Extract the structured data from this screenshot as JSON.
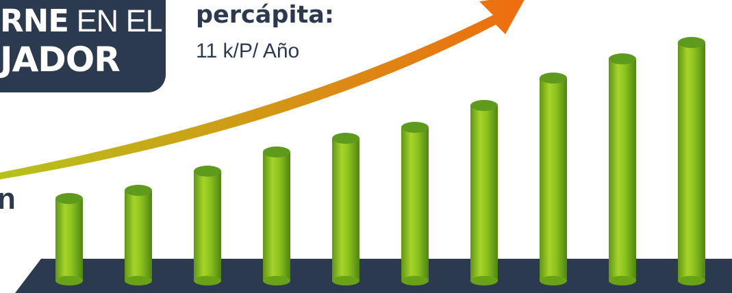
{
  "title": {
    "line1_bold": "RNE",
    "line1_light": " EN EL",
    "line2": "JADOR"
  },
  "subtitle": "percápita:",
  "unit_label": "11 k/P/ Año",
  "side_fragment": "n",
  "colors": {
    "badge": "#2b3a4f",
    "bar": "#8dc21f",
    "bar_top": "#5e9a1c",
    "base": "#2b3a4f",
    "arrow_start": "#b6c21b",
    "arrow_end": "#ef6c0f"
  },
  "chart_data": {
    "type": "bar",
    "categories": [
      "",
      "",
      "",
      "",
      "",
      "",
      "",
      "",
      "",
      ""
    ],
    "series": [
      {
        "values": [
          30,
          33,
          40,
          47,
          52,
          56,
          64,
          74,
          81,
          87
        ]
      }
    ],
    "ylim": [
      0,
      100
    ],
    "trend_arrow": "increasing",
    "grid": false,
    "legend": "none"
  }
}
